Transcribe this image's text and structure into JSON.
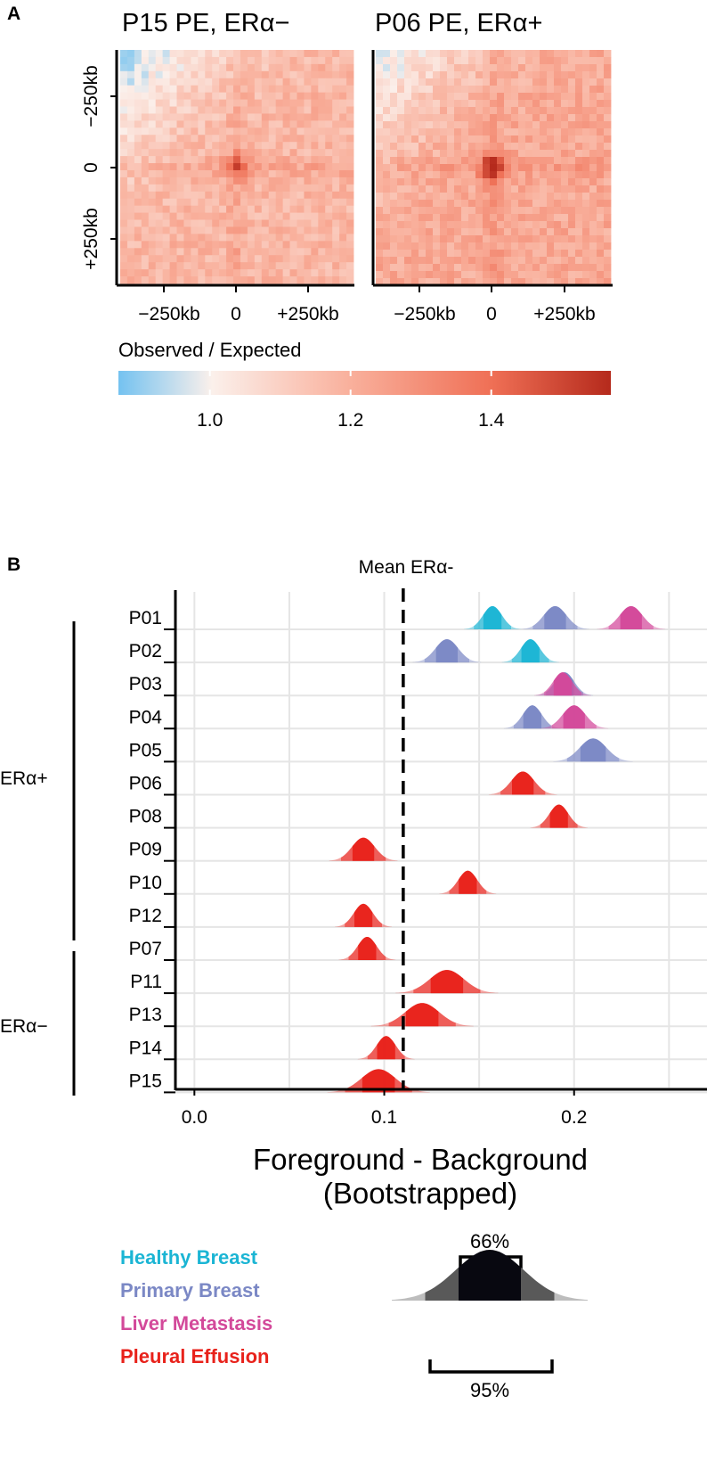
{
  "panel_a": {
    "label": "A",
    "colorbar_title": "Observed / Expected",
    "colorbar_range": [
      0.87,
      1.57
    ],
    "colorbar_ticks": [
      {
        "value": 1.0,
        "label": "1.0"
      },
      {
        "value": 1.2,
        "label": "1.2"
      },
      {
        "value": 1.4,
        "label": "1.4"
      }
    ],
    "colors": {
      "low": "#74c2f0",
      "mid": "#fbf0eb",
      "high": "#b52a1c"
    }
  },
  "panel_b": {
    "label": "B",
    "colors": {
      "Healthy Breast": "#1bb5d4",
      "Primary Breast": "#7b88c5",
      "Liver Metastasis": "#d3499a",
      "Pleural Effusion": "#e8221b"
    },
    "legend": [
      {
        "label": "Healthy Breast"
      },
      {
        "label": "Primary Breast"
      },
      {
        "label": "Liver Metastasis"
      },
      {
        "label": "Pleural Effusion"
      }
    ],
    "interval_key": {
      "inner": "66%",
      "outer": "95%"
    }
  },
  "chart_data": [
    {
      "type": "heatmap",
      "title": "P15 PE, ERα−",
      "x_tick_labels": [
        "−250kb",
        "0",
        "+250kb"
      ],
      "y_tick_labels": [
        "−250kb",
        "0",
        "+250kb"
      ],
      "grid_bins": 33,
      "background_ratio": 1.18,
      "center_peak": 1.38,
      "min_ratio": 0.9
    },
    {
      "type": "heatmap",
      "title": "P06 PE, ERα+",
      "x_tick_labels": [
        "−250kb",
        "0",
        "+250kb"
      ],
      "y_tick_labels": [],
      "grid_bins": 33,
      "background_ratio": 1.22,
      "center_peak": 1.57,
      "min_ratio": 0.96
    },
    {
      "type": "ridgeline",
      "title": "",
      "xlabel_line1": "Foreground - Background",
      "xlabel_line2": "(Bootstrapped)",
      "xlim": [
        -0.01,
        0.27
      ],
      "x_ticks": [
        0.0,
        0.1,
        0.2
      ],
      "x_tick_labels": [
        "0.0",
        "0.1",
        "0.2"
      ],
      "reference_line": {
        "label": "Mean ERα-",
        "value": 0.11
      },
      "groups": [
        {
          "label": "ERα+",
          "rows": [
            "P01",
            "P02",
            "P03",
            "P04",
            "P05",
            "P06",
            "P08",
            "P09",
            "P10",
            "P12"
          ]
        },
        {
          "label": "ERα−",
          "rows": [
            "P07",
            "P11",
            "P13",
            "P14",
            "P15"
          ]
        }
      ],
      "rows": [
        {
          "patient": "P01",
          "samples": [
            {
              "type": "Healthy Breast",
              "mean": 0.157,
              "sd": 0.005
            },
            {
              "type": "Primary Breast",
              "mean": 0.19,
              "sd": 0.006
            },
            {
              "type": "Liver Metastasis",
              "mean": 0.23,
              "sd": 0.006
            }
          ]
        },
        {
          "patient": "P02",
          "samples": [
            {
              "type": "Primary Breast",
              "mean": 0.133,
              "sd": 0.006
            },
            {
              "type": "Healthy Breast",
              "mean": 0.177,
              "sd": 0.005
            }
          ]
        },
        {
          "patient": "P03",
          "samples": [
            {
              "type": "Primary Breast",
              "mean": 0.195,
              "sd": 0.005
            },
            {
              "type": "Liver Metastasis",
              "mean": 0.194,
              "sd": 0.005
            }
          ]
        },
        {
          "patient": "P04",
          "samples": [
            {
              "type": "Primary Breast",
              "mean": 0.178,
              "sd": 0.005
            },
            {
              "type": "Liver Metastasis",
              "mean": 0.2,
              "sd": 0.006
            }
          ]
        },
        {
          "patient": "P05",
          "samples": [
            {
              "type": "Primary Breast",
              "mean": 0.21,
              "sd": 0.007
            }
          ]
        },
        {
          "patient": "P06",
          "samples": [
            {
              "type": "Pleural Effusion",
              "mean": 0.173,
              "sd": 0.006
            }
          ]
        },
        {
          "patient": "P08",
          "samples": [
            {
              "type": "Pleural Effusion",
              "mean": 0.192,
              "sd": 0.005
            }
          ]
        },
        {
          "patient": "P09",
          "samples": [
            {
              "type": "Pleural Effusion",
              "mean": 0.089,
              "sd": 0.006
            }
          ]
        },
        {
          "patient": "P10",
          "samples": [
            {
              "type": "Pleural Effusion",
              "mean": 0.144,
              "sd": 0.005
            }
          ]
        },
        {
          "patient": "P12",
          "samples": [
            {
              "type": "Pleural Effusion",
              "mean": 0.089,
              "sd": 0.005
            }
          ]
        },
        {
          "patient": "P07",
          "samples": [
            {
              "type": "Pleural Effusion",
              "mean": 0.091,
              "sd": 0.005
            }
          ]
        },
        {
          "patient": "P11",
          "samples": [
            {
              "type": "Pleural Effusion",
              "mean": 0.133,
              "sd": 0.009
            }
          ]
        },
        {
          "patient": "P13",
          "samples": [
            {
              "type": "Pleural Effusion",
              "mean": 0.12,
              "sd": 0.009
            }
          ]
        },
        {
          "patient": "P14",
          "samples": [
            {
              "type": "Pleural Effusion",
              "mean": 0.101,
              "sd": 0.005
            }
          ]
        },
        {
          "patient": "P15",
          "samples": [
            {
              "type": "Pleural Effusion",
              "mean": 0.097,
              "sd": 0.009
            }
          ]
        }
      ]
    }
  ]
}
